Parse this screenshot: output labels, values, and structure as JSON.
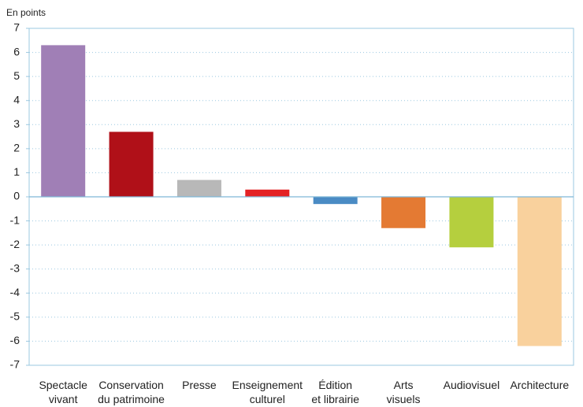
{
  "chart_data": {
    "type": "bar",
    "y_label": "En points",
    "categories": [
      "Spectacle\nvivant",
      "Conservation\ndu patrimoine",
      "Presse",
      "Enseignement\nculturel",
      "Édition\net librairie",
      "Arts\nvisuels",
      "Audiovisuel",
      "Architecture"
    ],
    "values": [
      6.3,
      2.7,
      0.7,
      0.3,
      -0.3,
      -1.3,
      -2.1,
      -6.2
    ],
    "colors": [
      "#a07fb6",
      "#b01018",
      "#b8b8b8",
      "#e42224",
      "#4a8bc4",
      "#e47a33",
      "#b5cf3e",
      "#f9d19d"
    ],
    "ylim": [
      -7,
      7
    ],
    "yticks": [
      -7,
      -6,
      -5,
      -4,
      -3,
      -2,
      -1,
      0,
      1,
      2,
      3,
      4,
      5,
      6,
      7
    ],
    "grid": true
  }
}
